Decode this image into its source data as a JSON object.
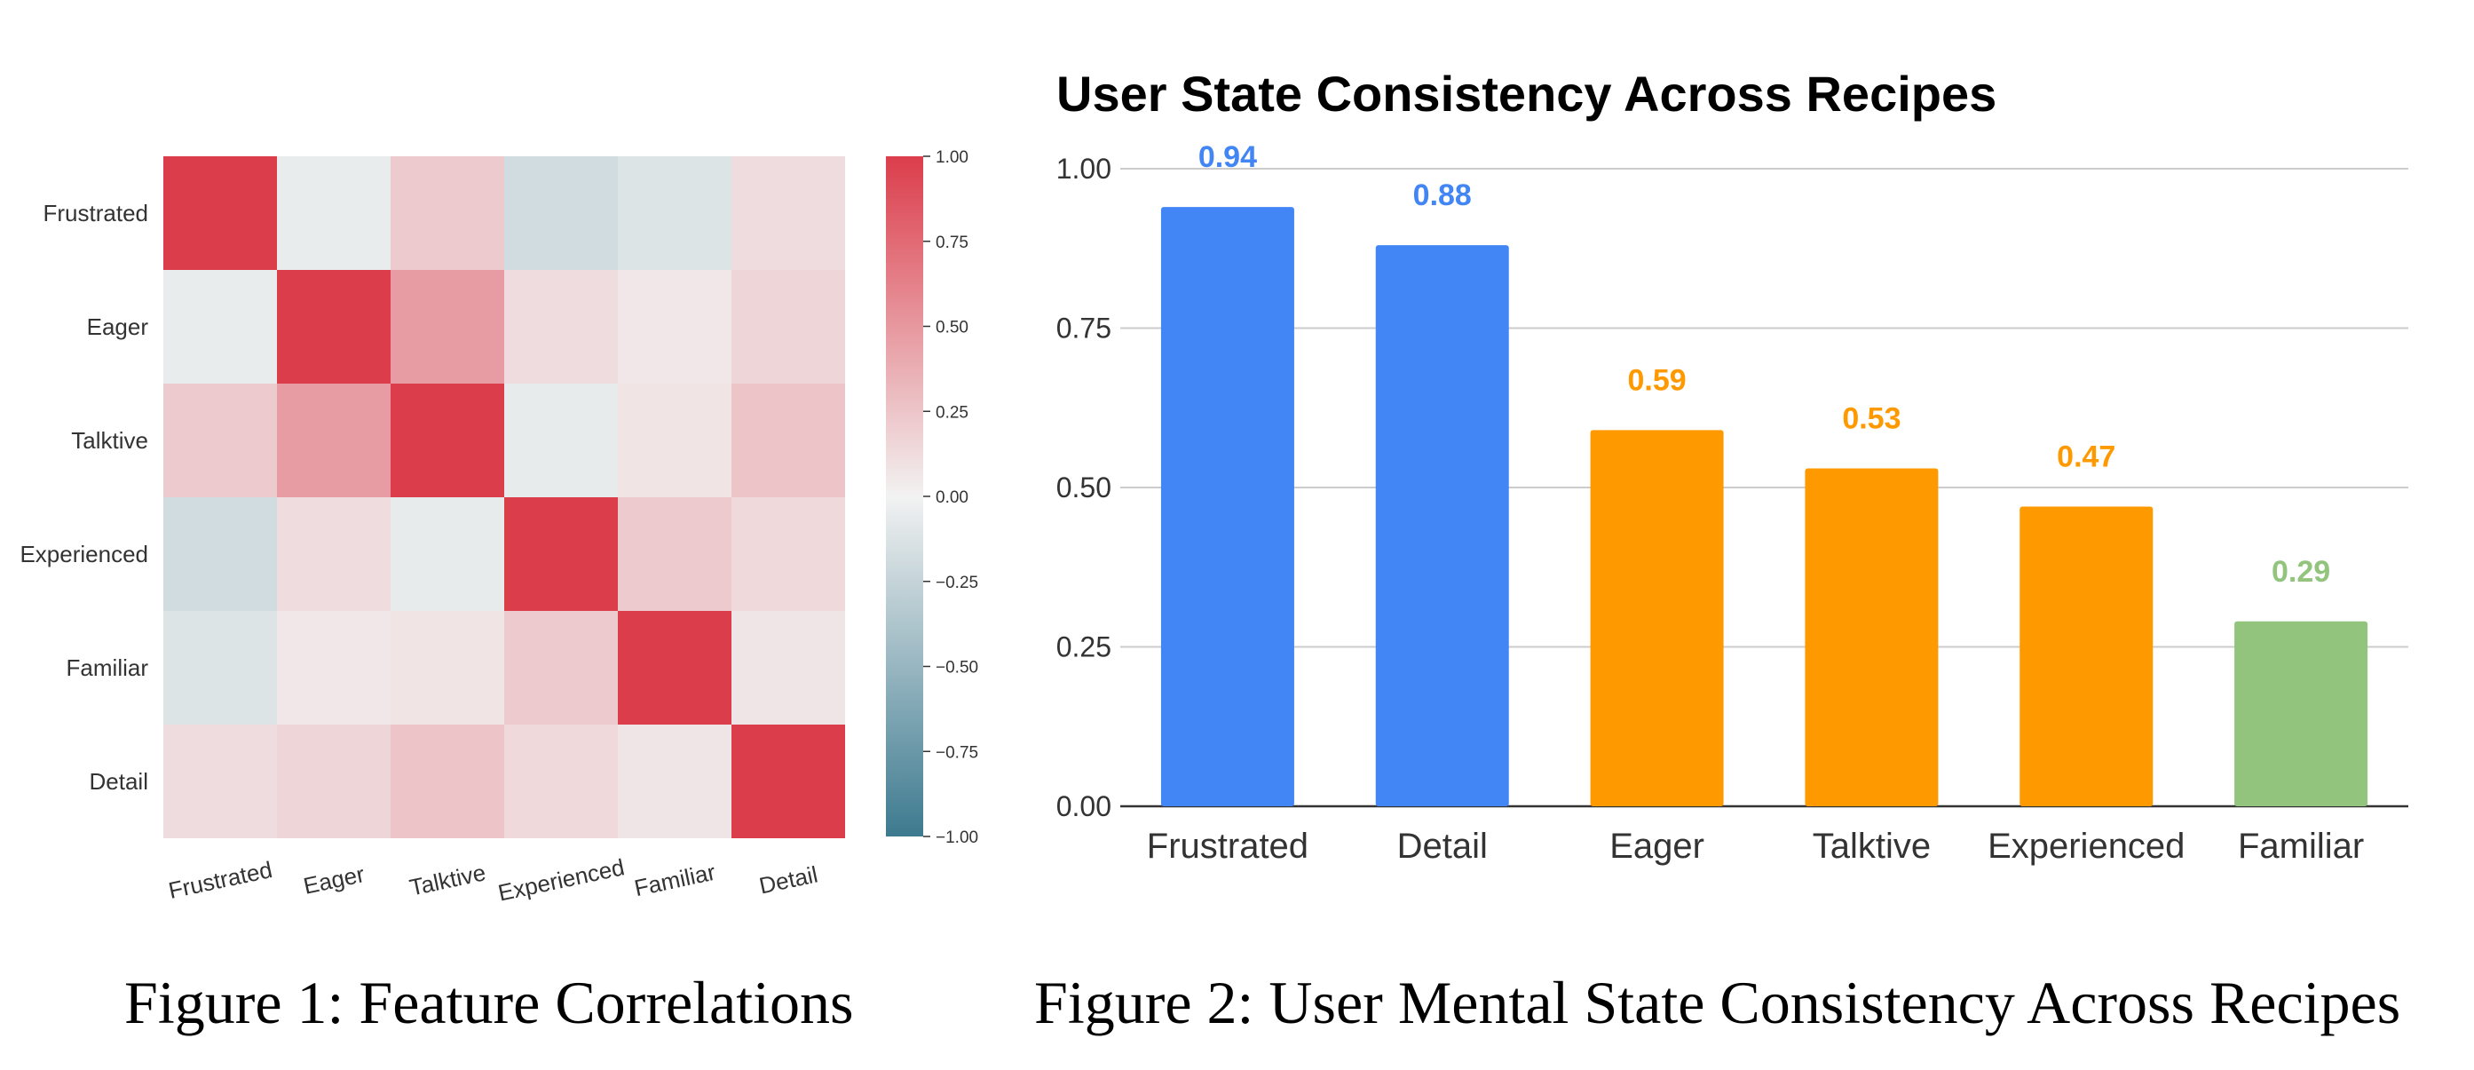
{
  "chart_data": [
    {
      "type": "heatmap",
      "title": "",
      "caption": "Figure 1: Feature Correlations",
      "row_labels": [
        "Frustrated",
        "Eager",
        "Talktive",
        "Experienced",
        "Familiar",
        "Detail"
      ],
      "col_labels": [
        "Frustrated",
        "Eager",
        "Talktive",
        "Experienced",
        "Familiar",
        "Detail"
      ],
      "values": [
        [
          1.0,
          -0.05,
          0.22,
          -0.18,
          -0.12,
          0.12
        ],
        [
          -0.05,
          1.0,
          0.48,
          0.12,
          0.06,
          0.16
        ],
        [
          0.22,
          0.48,
          1.0,
          -0.06,
          0.08,
          0.25
        ],
        [
          -0.18,
          0.12,
          -0.06,
          1.0,
          0.22,
          0.14
        ],
        [
          -0.12,
          0.06,
          0.08,
          0.22,
          1.0,
          0.07
        ],
        [
          0.12,
          0.16,
          0.25,
          0.14,
          0.07,
          1.0
        ]
      ],
      "vmin": -1.0,
      "vmax": 1.0,
      "colorbar_ticks": [
        "1.00",
        "0.75",
        "0.50",
        "0.25",
        "0.00",
        "−0.25",
        "−0.50",
        "−0.75",
        "−1.00"
      ],
      "colors": {
        "high": "#dc3d4b",
        "mid": "#f2f2f2",
        "low": "#3d7a8f"
      }
    },
    {
      "type": "bar",
      "title": "User State Consistency Across Recipes",
      "caption": "Figure 2: User Mental State Consistency Across Recipes",
      "categories": [
        "Frustrated",
        "Detail",
        "Eager",
        "Talktive",
        "Experienced",
        "Familiar"
      ],
      "values": [
        0.94,
        0.88,
        0.59,
        0.53,
        0.47,
        0.29
      ],
      "value_labels": [
        "0.94",
        "0.88",
        "0.59",
        "0.53",
        "0.47",
        "0.29"
      ],
      "bar_colors": [
        "#4285f4",
        "#4285f4",
        "#ff9900",
        "#ff9900",
        "#ff9900",
        "#93c47d"
      ],
      "yticks": [
        "0.00",
        "0.25",
        "0.50",
        "0.75",
        "1.00"
      ],
      "ylim": [
        0,
        1.0
      ],
      "xlabel": "",
      "ylabel": "",
      "grid": true
    }
  ]
}
